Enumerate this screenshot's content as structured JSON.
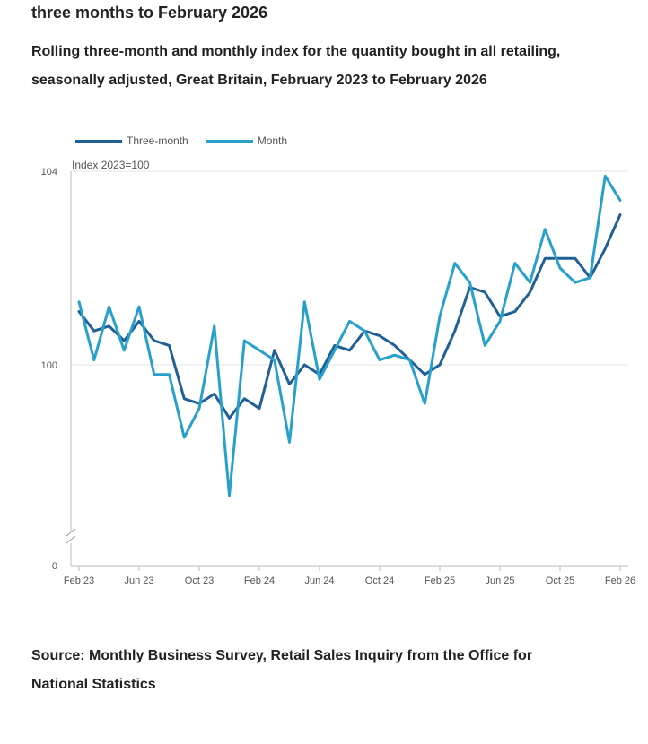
{
  "page": {
    "heading": "three months to February 2026",
    "subtitle": "Rolling three-month and monthly index for the quantity bought in all retailing, seasonally adjusted, Great Britain, February 2023 to February 2026",
    "source": "Source: Monthly Business Survey, Retail Sales Inquiry from the Office for National Statistics"
  },
  "colors": {
    "three_month": "#206095",
    "month": "#27a0cc",
    "grid": "#e5e5e5",
    "axis": "#bbbbbb"
  },
  "legend": [
    {
      "label": "Three-month",
      "series": "three_month"
    },
    {
      "label": "Month",
      "series": "month"
    }
  ],
  "chart_data": {
    "type": "line",
    "title": "Rolling three-month and monthly index for the quantity bought in all retailing, seasonally adjusted, Great Britain, February 2023 to February 2026",
    "ylabel": "Index 2023=100",
    "xlabel": "",
    "x_tick_labels": [
      "Feb 23",
      "Jun 23",
      "Oct 23",
      "Feb 24",
      "Jun 24",
      "Oct 24",
      "Feb 25",
      "Jun 25",
      "Oct 25",
      "Feb 26"
    ],
    "y_ticks": [
      "104",
      "100",
      "0"
    ],
    "ylim_display": [
      97.5,
      104
    ],
    "axis_break": true,
    "categories": [
      "Feb 23",
      "Mar 23",
      "Apr 23",
      "May 23",
      "Jun 23",
      "Jul 23",
      "Aug 23",
      "Sep 23",
      "Oct 23",
      "Nov 23",
      "Dec 23",
      "Jan 24",
      "Feb 24",
      "Mar 24",
      "Apr 24",
      "May 24",
      "Jun 24",
      "Jul 24",
      "Aug 24",
      "Sep 24",
      "Oct 24",
      "Nov 24",
      "Dec 24",
      "Jan 25",
      "Feb 25",
      "Mar 25",
      "Apr 25",
      "May 25",
      "Jun 25",
      "Jul 25",
      "Aug 25",
      "Sep 25",
      "Oct 25",
      "Nov 25",
      "Dec 25",
      "Jan 26",
      "Feb 26"
    ],
    "series": [
      {
        "name": "Three-month",
        "key": "three_month",
        "values": [
          101.1,
          100.7,
          100.8,
          100.5,
          100.9,
          100.5,
          100.4,
          99.3,
          99.2,
          99.4,
          98.9,
          99.3,
          99.1,
          100.3,
          99.6,
          100.0,
          99.8,
          100.4,
          100.3,
          100.7,
          100.6,
          100.4,
          100.1,
          99.8,
          100.0,
          100.7,
          101.6,
          101.5,
          101.0,
          101.1,
          101.5,
          102.2,
          102.2,
          102.2,
          101.8,
          102.4,
          103.1
        ]
      },
      {
        "name": "Month",
        "key": "month",
        "values": [
          101.3,
          100.1,
          101.2,
          100.3,
          101.2,
          99.8,
          99.8,
          98.5,
          99.1,
          100.8,
          97.3,
          100.5,
          100.3,
          100.1,
          98.4,
          101.3,
          99.7,
          100.3,
          100.9,
          100.7,
          100.1,
          100.2,
          100.1,
          99.2,
          101.0,
          102.1,
          101.7,
          100.4,
          100.9,
          102.1,
          101.7,
          102.8,
          102.0,
          101.7,
          101.8,
          103.9,
          103.4
        ]
      }
    ]
  }
}
